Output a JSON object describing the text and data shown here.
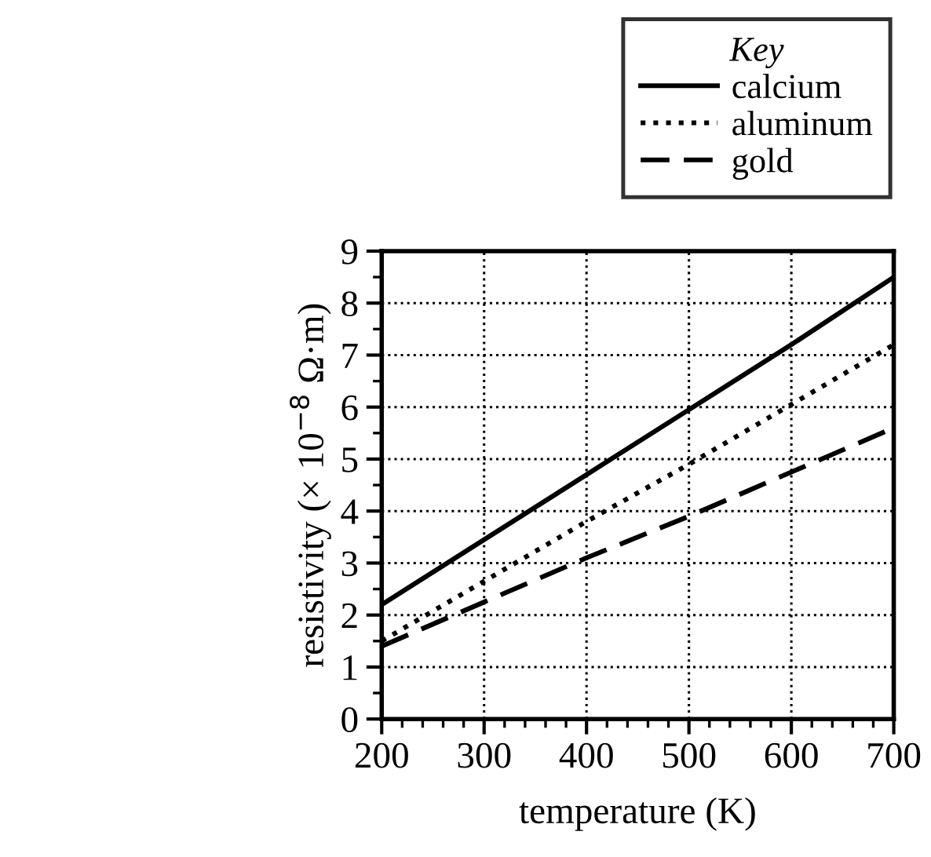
{
  "chart_data": {
    "type": "line",
    "xlabel": "temperature (K)",
    "ylabel": "resistivity (× 10$^{−8}$ Ω·m)",
    "legend_title": "Key",
    "legend": "top right",
    "x": [
      200,
      300,
      400,
      500,
      600,
      700
    ],
    "series": [
      {
        "name": "calcium",
        "color": "#000000",
        "line_style": "solid",
        "values": [
          2.2,
          3.45,
          4.7,
          5.95,
          7.2,
          8.5
        ]
      },
      {
        "name": "aluminum",
        "color": "#000000",
        "line_style": "dotted",
        "values": [
          1.5,
          2.65,
          3.8,
          4.9,
          6.05,
          7.2
        ]
      },
      {
        "name": "gold",
        "color": "#000000",
        "line_style": "dashed",
        "values": [
          1.4,
          2.25,
          3.1,
          3.9,
          4.75,
          5.6
        ]
      }
    ],
    "xlim": [
      200,
      700
    ],
    "xticks": [
      200,
      300,
      400,
      500,
      600,
      700
    ],
    "ylim": [
      0,
      9
    ],
    "yticks": [
      0,
      1,
      2,
      3,
      4,
      5,
      6,
      7,
      8,
      9
    ],
    "grid": true,
    "marker": "none"
  }
}
